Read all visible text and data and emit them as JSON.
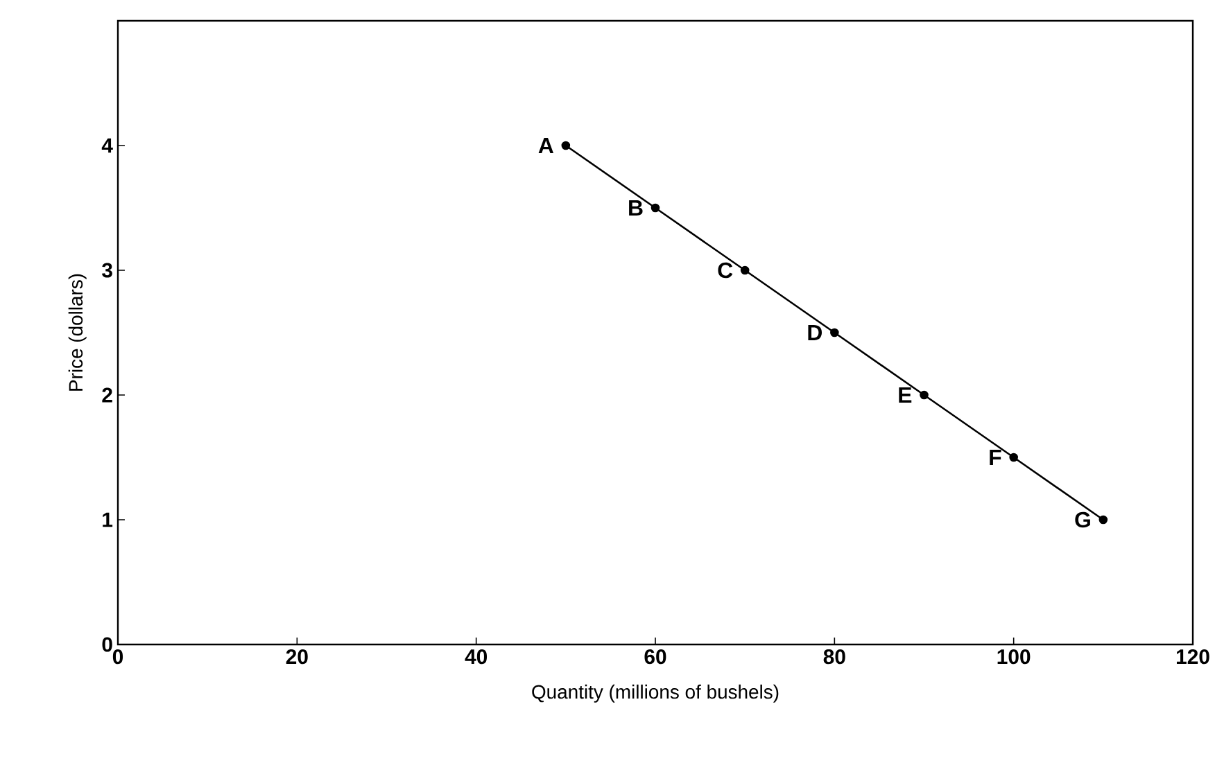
{
  "chart_data": {
    "type": "line",
    "xlabel": "Quantity (millions of bushels)",
    "ylabel": "Price (dollars)",
    "x": [
      50,
      60,
      70,
      80,
      90,
      100,
      110
    ],
    "series": [
      {
        "color": "#000000",
        "values": [
          4,
          3.5,
          3,
          2.5,
          2,
          1.5,
          1
        ]
      }
    ],
    "xlim": [
      0,
      120
    ],
    "ylim": [
      0,
      5
    ],
    "xticks": [
      0,
      20,
      40,
      60,
      80,
      100,
      120
    ],
    "yticks": [
      0,
      1,
      2,
      3,
      4
    ],
    "marker": "circle",
    "line_style": "solid",
    "grid": false,
    "annotations": [
      {
        "text": "A",
        "x": 50,
        "y": 4
      },
      {
        "text": "B",
        "x": 60,
        "y": 3.5
      },
      {
        "text": "C",
        "x": 70,
        "y": 3
      },
      {
        "text": "D",
        "x": 80,
        "y": 2.5
      },
      {
        "text": "E",
        "x": 90,
        "y": 2
      },
      {
        "text": "F",
        "x": 100,
        "y": 1.5
      },
      {
        "text": "G",
        "x": 110,
        "y": 1
      }
    ]
  }
}
